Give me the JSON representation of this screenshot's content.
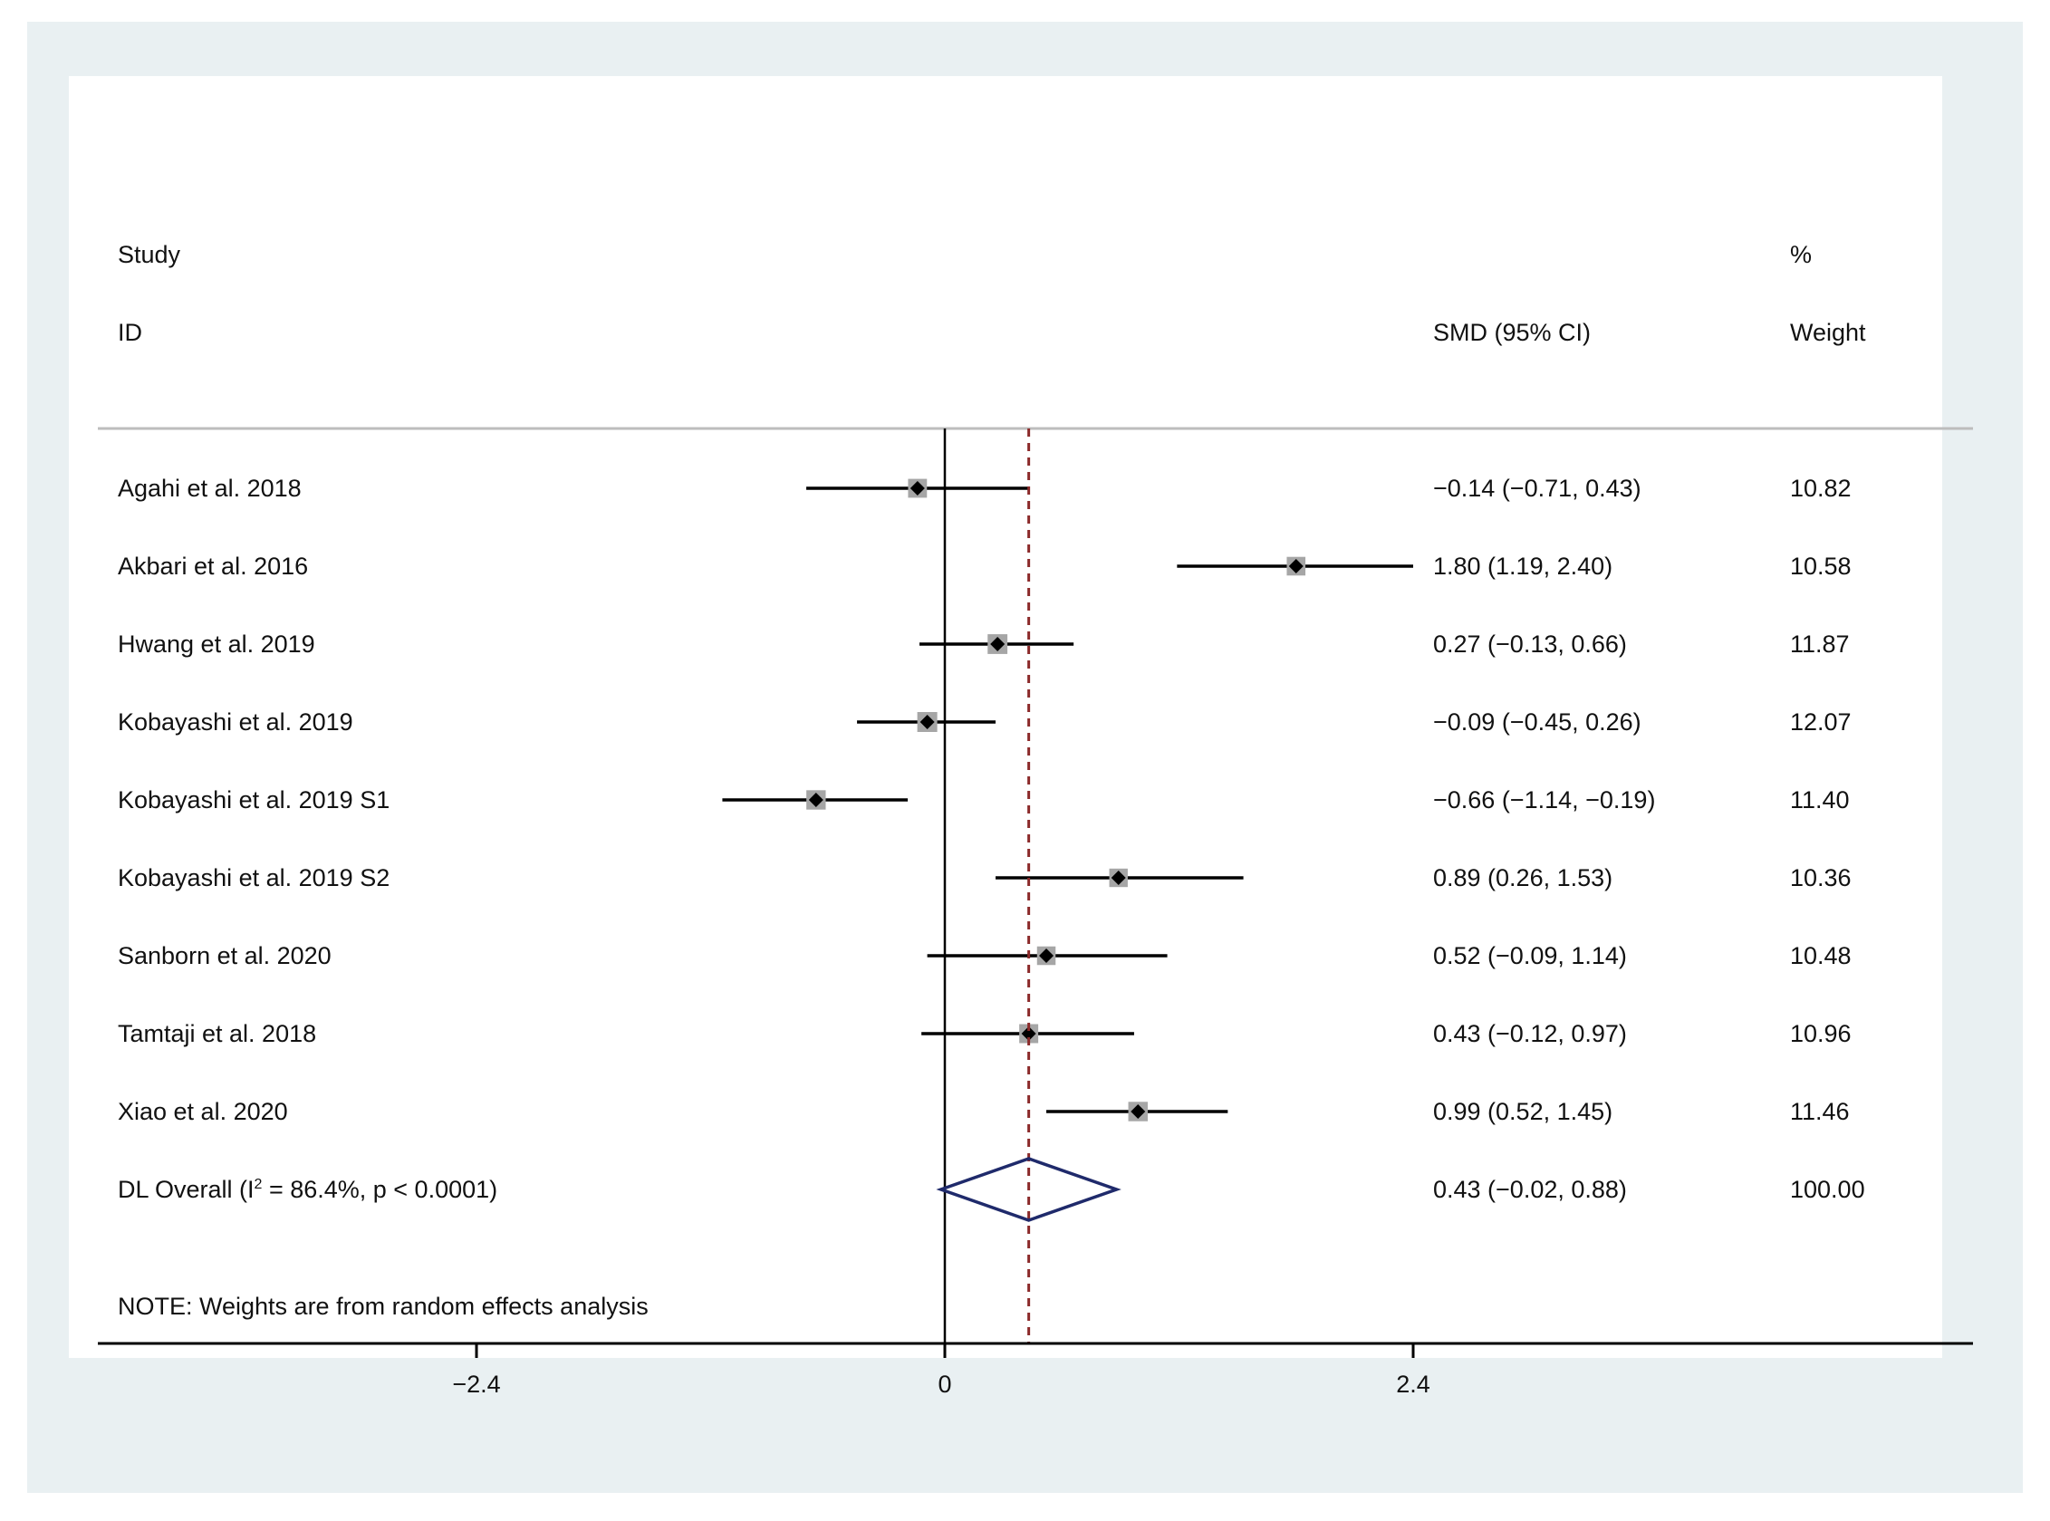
{
  "chart_data": {
    "type": "forest",
    "header": {
      "study_line1": "Study",
      "study_line2": "ID",
      "effect_label": "SMD (95% CI)",
      "weight_line1": "%",
      "weight_line2": "Weight"
    },
    "studies": [
      {
        "id": "Agahi et al. 2018",
        "smd": -0.14,
        "lo": -0.71,
        "hi": 0.43,
        "ci_text": "−0.14 (−0.71, 0.43)",
        "weight": 10.82,
        "weight_text": "10.82"
      },
      {
        "id": "Akbari et al. 2016",
        "smd": 1.8,
        "lo": 1.19,
        "hi": 2.4,
        "ci_text": "1.80 (1.19, 2.40)",
        "weight": 10.58,
        "weight_text": "10.58"
      },
      {
        "id": "Hwang et al. 2019",
        "smd": 0.27,
        "lo": -0.13,
        "hi": 0.66,
        "ci_text": "0.27 (−0.13, 0.66)",
        "weight": 11.87,
        "weight_text": "11.87"
      },
      {
        "id": "Kobayashi et al. 2019",
        "smd": -0.09,
        "lo": -0.45,
        "hi": 0.26,
        "ci_text": "−0.09 (−0.45, 0.26)",
        "weight": 12.07,
        "weight_text": "12.07"
      },
      {
        "id": "Kobayashi et al. 2019 S1",
        "smd": -0.66,
        "lo": -1.14,
        "hi": -0.19,
        "ci_text": "−0.66 (−1.14, −0.19)",
        "weight": 11.4,
        "weight_text": "11.40"
      },
      {
        "id": "Kobayashi et al. 2019 S2",
        "smd": 0.89,
        "lo": 0.26,
        "hi": 1.53,
        "ci_text": "0.89 (0.26, 1.53)",
        "weight": 10.36,
        "weight_text": "10.36"
      },
      {
        "id": "Sanborn et al. 2020",
        "smd": 0.52,
        "lo": -0.09,
        "hi": 1.14,
        "ci_text": "0.52 (−0.09, 1.14)",
        "weight": 10.48,
        "weight_text": "10.48"
      },
      {
        "id": "Tamtaji et al. 2018",
        "smd": 0.43,
        "lo": -0.12,
        "hi": 0.97,
        "ci_text": "0.43 (−0.12, 0.97)",
        "weight": 10.96,
        "weight_text": "10.96"
      },
      {
        "id": "Xiao et al. 2020",
        "smd": 0.99,
        "lo": 0.52,
        "hi": 1.45,
        "ci_text": "0.99 (0.52, 1.45)",
        "weight": 11.46,
        "weight_text": "11.46"
      }
    ],
    "overall": {
      "label_prefix": "DL Overall  (I",
      "label_sup": "2",
      "label_suffix": " = 86.4%, p < 0.0001)",
      "smd": 0.43,
      "lo": -0.02,
      "hi": 0.88,
      "ci_text": "0.43 (−0.02, 0.88)",
      "weight": 100.0,
      "weight_text": "100.00"
    },
    "note": "NOTE: Weights are from random effects analysis",
    "x_axis": {
      "ticks": [
        -2.4,
        0,
        2.4
      ],
      "tick_labels": [
        "−2.4",
        "0",
        "2.4"
      ],
      "range": [
        -4.35,
        5.3
      ]
    },
    "colors": {
      "background_frame": "#e9f0f2",
      "ci_line": "#000000",
      "weight_box": "#a6a6a6",
      "point": "#000000",
      "overall_diamond": "#1f2a6b",
      "overall_line": "#8b2a2a",
      "null_line": "#000000"
    }
  }
}
